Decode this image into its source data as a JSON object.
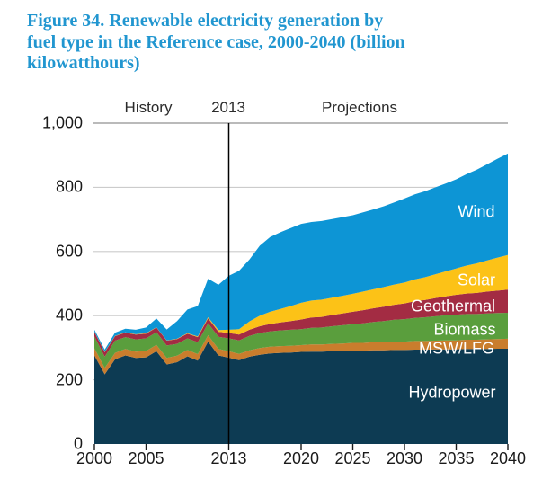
{
  "title": {
    "lines": [
      "Figure 34. Renewable electricity generation by",
      "fuel type in the Reference case, 2000-2040 (billion",
      "kilowatthours)"
    ],
    "full": "Figure 34. Renewable electricity generation by fuel type in the Reference case, 2000-2040 (billion kilowatthours)",
    "color": "#2196d0"
  },
  "period_labels": {
    "history": "History",
    "divider": "2013",
    "projections": "Projections"
  },
  "y_axis": {
    "tick_labels": [
      "0",
      "200",
      "400",
      "600",
      "800",
      "1,000"
    ],
    "tick_values": [
      0,
      200,
      400,
      600,
      800,
      1000
    ]
  },
  "x_axis": {
    "tick_labels": [
      "2000",
      "2005",
      "2013",
      "2020",
      "2025",
      "2030",
      "2035",
      "2040"
    ],
    "tick_values": [
      2000,
      2005,
      2013,
      2020,
      2025,
      2030,
      2035,
      2040
    ]
  },
  "colors": {
    "gridline": "#cccccc",
    "top_gridline": "#a3a3a3",
    "divider_line": "#000000",
    "tick": "#1a1a1a",
    "axis_text": "#1a1a1a"
  },
  "chart_data": {
    "type": "area",
    "stacked": true,
    "title": "Renewable electricity generation by fuel type in the Reference case, 2000-2040",
    "units": "billion kilowatthours",
    "xlim": [
      2000,
      2040
    ],
    "ylim": [
      0,
      1000
    ],
    "divider_year": 2013,
    "grid": "horizontal",
    "legend": "labels-inside-areas",
    "x": [
      2000,
      2001,
      2002,
      2003,
      2004,
      2005,
      2006,
      2007,
      2008,
      2009,
      2010,
      2011,
      2012,
      2013,
      2014,
      2015,
      2016,
      2017,
      2018,
      2019,
      2020,
      2021,
      2022,
      2023,
      2024,
      2025,
      2026,
      2027,
      2028,
      2029,
      2030,
      2031,
      2032,
      2033,
      2034,
      2035,
      2036,
      2037,
      2038,
      2039,
      2040
    ],
    "series": [
      {
        "name": "Hydropower",
        "color": "#0d3b53",
        "label_pos": {
          "x": 503,
          "y": 437
        },
        "values": [
          276,
          217,
          264,
          276,
          268,
          270,
          289,
          248,
          255,
          273,
          260,
          319,
          276,
          269,
          261,
          272,
          278,
          282,
          284,
          285,
          287,
          288,
          288,
          289,
          290,
          291,
          291,
          292,
          292,
          293,
          293,
          294,
          294,
          295,
          295,
          295,
          296,
          296,
          296,
          297,
          297
        ]
      },
      {
        "name": "MSW/LFG",
        "color": "#c97d2d",
        "label_pos": {
          "x": 508,
          "y": 388
        },
        "values": [
          22,
          20,
          20,
          20,
          20,
          20,
          20,
          20,
          20,
          20,
          20,
          20,
          20,
          20,
          20,
          20,
          21,
          21,
          21,
          21,
          21,
          22,
          22,
          23,
          23,
          24,
          24,
          25,
          25,
          26,
          26,
          27,
          27,
          27,
          28,
          28,
          29,
          29,
          30,
          30,
          31
        ]
      },
      {
        "name": "Biomass",
        "color": "#5a9e3d",
        "label_pos": {
          "x": 517,
          "y": 367
        },
        "values": [
          37,
          35,
          38,
          37,
          38,
          39,
          39,
          39,
          37,
          36,
          37,
          37,
          38,
          40,
          42,
          45,
          47,
          48,
          49,
          50,
          50,
          52,
          53,
          55,
          57,
          58,
          61,
          63,
          66,
          68,
          70,
          72,
          74,
          76,
          78,
          80,
          80,
          80,
          81,
          81,
          81
        ]
      },
      {
        "name": "Geothermal",
        "color": "#a32c43",
        "label_pos": {
          "x": 504,
          "y": 341
        },
        "values": [
          14,
          14,
          14,
          14,
          15,
          15,
          15,
          15,
          15,
          15,
          16,
          16,
          16,
          17,
          18,
          19,
          21,
          23,
          25,
          27,
          30,
          32,
          33,
          35,
          37,
          39,
          41,
          43,
          45,
          47,
          49,
          52,
          54,
          57,
          59,
          62,
          64,
          66,
          68,
          70,
          72
        ]
      },
      {
        "name": "Solar",
        "color": "#fcc217",
        "label_pos": {
          "x": 530,
          "y": 312
        },
        "values": [
          1,
          1,
          1,
          1,
          1,
          1,
          1,
          1,
          1,
          1,
          2,
          3,
          5,
          10,
          17,
          26,
          33,
          38,
          42,
          47,
          52,
          53,
          54,
          54,
          55,
          56,
          58,
          59,
          61,
          63,
          65,
          68,
          71,
          74,
          78,
          82,
          87,
          92,
          97,
          103,
          108
        ]
      },
      {
        "name": "Wind",
        "color": "#0d95d5",
        "label_pos": {
          "x": 530,
          "y": 236
        },
        "values": [
          6,
          7,
          10,
          11,
          14,
          18,
          27,
          34,
          55,
          74,
          95,
          120,
          141,
          168,
          182,
          193,
          218,
          233,
          239,
          243,
          246,
          245,
          245,
          245,
          245,
          245,
          247,
          249,
          252,
          256,
          262,
          265,
          268,
          271,
          274,
          278,
          285,
          292,
          300,
          308,
          316
        ]
      }
    ]
  }
}
